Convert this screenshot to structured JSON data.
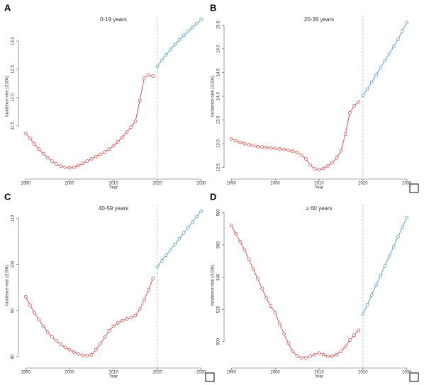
{
  "chart_data": [
    {
      "type": "line",
      "panel": "A",
      "title": "0-19 years",
      "x_label": "Year",
      "y_label": "Incidence rate (/100k)",
      "x": [
        1990,
        1991,
        1992,
        1993,
        1994,
        1995,
        1996,
        1997,
        1998,
        1999,
        2000,
        2001,
        2002,
        2003,
        2004,
        2005,
        2006,
        2007,
        2008,
        2009,
        2010,
        2011,
        2012,
        2013,
        2014,
        2015,
        2016,
        2017,
        2018,
        2019,
        2020,
        2021,
        2022,
        2023,
        2024,
        2025,
        2026,
        2027,
        2028,
        2029,
        2030
      ],
      "xlim": [
        1989,
        2031
      ],
      "xticks": [
        1990,
        2000,
        2010,
        2020,
        2030
      ],
      "ylim": [
        10.6,
        13.45
      ],
      "yticks": [
        {
          "value": 11.5,
          "label": "11.5"
        },
        {
          "value": 12,
          "label": "12.0"
        },
        {
          "value": 12.5,
          "label": "12.5"
        },
        {
          "value": 13,
          "label": "13.0"
        }
      ],
      "vline": 2020,
      "series": [
        {
          "color": "#d9534f",
          "values": [
            11.37,
            11.28,
            11.18,
            11.09,
            11.01,
            10.94,
            10.88,
            10.83,
            10.79,
            10.77,
            10.76,
            10.77,
            10.8,
            10.84,
            10.88,
            10.92,
            10.96,
            11.0,
            11.04,
            11.09,
            11.15,
            11.22,
            11.3,
            11.39,
            11.48,
            11.58,
            11.95,
            12.35,
            12.4,
            12.38,
            null,
            null,
            null,
            null,
            null,
            null,
            null,
            null,
            null,
            null,
            null
          ]
        },
        {
          "color": "#5b9bd5",
          "values": [
            null,
            null,
            null,
            null,
            null,
            null,
            null,
            null,
            null,
            null,
            null,
            null,
            null,
            null,
            null,
            null,
            null,
            null,
            null,
            null,
            null,
            null,
            null,
            null,
            null,
            null,
            null,
            null,
            null,
            null,
            12.55,
            12.66,
            12.76,
            12.85,
            12.94,
            13.02,
            13.1,
            13.17,
            13.24,
            13.31,
            13.38
          ]
        }
      ]
    },
    {
      "type": "line",
      "panel": "B",
      "title": "20-39 years",
      "x_label": "Year",
      "y_label": "Incidence rate (/100k)",
      "x": [
        1990,
        1991,
        1992,
        1993,
        1994,
        1995,
        1996,
        1997,
        1998,
        1999,
        2000,
        2001,
        2002,
        2003,
        2004,
        2005,
        2006,
        2007,
        2008,
        2009,
        2010,
        2011,
        2012,
        2013,
        2014,
        2015,
        2016,
        2017,
        2018,
        2019,
        2020,
        2021,
        2022,
        2023,
        2024,
        2025,
        2026,
        2027,
        2028,
        2029,
        2030
      ],
      "xlim": [
        1989,
        2031
      ],
      "xticks": [
        1990,
        2000,
        2010,
        2020,
        2030
      ],
      "ylim": [
        12.3,
        15.7
      ],
      "yticks": [
        {
          "value": 12.5,
          "label": "12.5"
        },
        {
          "value": 13,
          "label": "13.0"
        },
        {
          "value": 13.5,
          "label": "13.5"
        },
        {
          "value": 14,
          "label": "14.0"
        },
        {
          "value": 14.5,
          "label": "14.5"
        },
        {
          "value": 15,
          "label": "15.0"
        },
        {
          "value": 15.5,
          "label": "15.5"
        }
      ],
      "vline": 2020,
      "series": [
        {
          "color": "#d9534f",
          "values": [
            13.1,
            13.06,
            13.03,
            13.0,
            12.98,
            12.96,
            12.94,
            12.93,
            12.92,
            12.91,
            12.9,
            12.89,
            12.88,
            12.86,
            12.84,
            12.81,
            12.76,
            12.68,
            12.55,
            12.47,
            12.45,
            12.48,
            12.53,
            12.6,
            12.7,
            12.85,
            13.2,
            13.65,
            13.8,
            13.88,
            null,
            null,
            null,
            null,
            null,
            null,
            null,
            null,
            null,
            null,
            null
          ]
        },
        {
          "color": "#5b9bd5",
          "values": [
            null,
            null,
            null,
            null,
            null,
            null,
            null,
            null,
            null,
            null,
            null,
            null,
            null,
            null,
            null,
            null,
            null,
            null,
            null,
            null,
            null,
            null,
            null,
            null,
            null,
            null,
            null,
            null,
            null,
            null,
            14.02,
            14.15,
            14.3,
            14.45,
            14.6,
            14.75,
            14.9,
            15.05,
            15.2,
            15.38,
            15.55
          ]
        }
      ]
    },
    {
      "type": "line",
      "panel": "C",
      "title": "40-59 years",
      "x_label": "Year",
      "y_label": "Incidence rate (/100k)",
      "x": [
        1990,
        1991,
        1992,
        1993,
        1994,
        1995,
        1996,
        1997,
        1998,
        1999,
        2000,
        2001,
        2002,
        2003,
        2004,
        2005,
        2006,
        2007,
        2008,
        2009,
        2010,
        2011,
        2012,
        2013,
        2014,
        2015,
        2016,
        2017,
        2018,
        2019,
        2020,
        2021,
        2022,
        2023,
        2024,
        2025,
        2026,
        2027,
        2028,
        2029,
        2030
      ],
      "xlim": [
        1989,
        2031
      ],
      "xticks": [
        1990,
        2000,
        2010,
        2020,
        2030
      ],
      "ylim": [
        78,
        113
      ],
      "yticks": [
        80,
        90,
        100,
        110
      ],
      "vline": 2020,
      "series": [
        {
          "color": "#d9534f",
          "values": [
            93.0,
            91.2,
            89.5,
            88.0,
            86.6,
            85.3,
            84.3,
            83.4,
            82.7,
            82.0,
            81.5,
            81.0,
            80.6,
            80.3,
            80.2,
            80.4,
            81.5,
            82.8,
            84.2,
            85.6,
            86.6,
            87.3,
            87.8,
            88.2,
            88.5,
            88.9,
            90.3,
            92.3,
            94.5,
            97.0,
            null,
            null,
            null,
            null,
            null,
            null,
            null,
            null,
            null,
            null,
            null
          ]
        },
        {
          "color": "#5b9bd5",
          "values": [
            null,
            null,
            null,
            null,
            null,
            null,
            null,
            null,
            null,
            null,
            null,
            null,
            null,
            null,
            null,
            null,
            null,
            null,
            null,
            null,
            null,
            null,
            null,
            null,
            null,
            null,
            null,
            null,
            null,
            null,
            99.5,
            100.8,
            102.0,
            103.2,
            104.4,
            105.6,
            106.8,
            108.0,
            109.2,
            110.4,
            111.6
          ]
        }
      ]
    },
    {
      "type": "line",
      "panel": "D",
      "title": "≥ 60 years",
      "x_label": "Year",
      "y_label": "Incidence rate (/100k)",
      "x": [
        1990,
        1991,
        1992,
        1993,
        1994,
        1995,
        1996,
        1997,
        1998,
        1999,
        2000,
        2001,
        2002,
        2003,
        2004,
        2005,
        2006,
        2007,
        2008,
        2009,
        2010,
        2011,
        2012,
        2013,
        2014,
        2015,
        2016,
        2017,
        2018,
        2019,
        2020,
        2021,
        2022,
        2023,
        2024,
        2025,
        2026,
        2027,
        2028,
        2029,
        2030
      ],
      "xlim": [
        1989,
        2031
      ],
      "xticks": [
        1990,
        2000,
        2010,
        2020,
        2030
      ],
      "ylim": [
        485,
        585
      ],
      "yticks": [
        500,
        520,
        540,
        560,
        580
      ],
      "vline": 2020,
      "series": [
        {
          "color": "#d9534f",
          "values": [
            572,
            567,
            562,
            557,
            551,
            545,
            539,
            533,
            527,
            522,
            518,
            511,
            505,
            499,
            494,
            491,
            490,
            490,
            491,
            492,
            493,
            492,
            491,
            491,
            492,
            494,
            497,
            501,
            504,
            507,
            null,
            null,
            null,
            null,
            null,
            null,
            null,
            null,
            null,
            null,
            null
          ]
        },
        {
          "color": "#5b9bd5",
          "values": [
            null,
            null,
            null,
            null,
            null,
            null,
            null,
            null,
            null,
            null,
            null,
            null,
            null,
            null,
            null,
            null,
            null,
            null,
            null,
            null,
            null,
            null,
            null,
            null,
            null,
            null,
            null,
            null,
            null,
            null,
            517,
            523,
            529,
            535,
            541,
            547,
            553,
            559,
            565,
            571,
            577
          ]
        }
      ]
    }
  ]
}
